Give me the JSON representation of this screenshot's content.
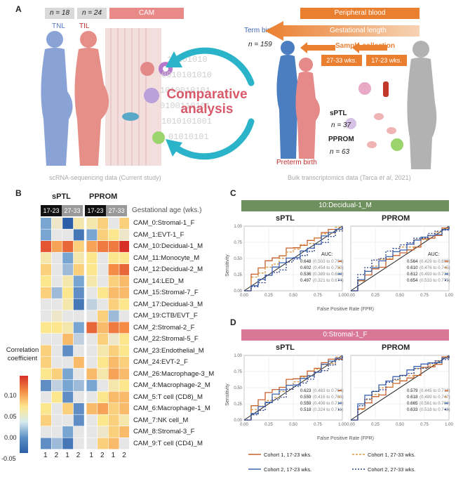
{
  "panelA": {
    "label": "A",
    "n_tnl": "n = 18",
    "n_til": "n = 24",
    "cam": "CAM",
    "tnl": "TNL",
    "til": "TIL",
    "peripheral": "Peripheral blood",
    "term_birth": "Term birth",
    "n_term": "n = 159",
    "gestational_length": "Gestational length",
    "sample_collection": "Sample collection",
    "wk_27_33": "27-33 wks.",
    "wk_17_23": "17-23 wks.",
    "comparative": "Comparative",
    "analysis": "analysis",
    "sptl": "sPTL",
    "n_sptl": "n = 37",
    "pprom": "PPROM",
    "n_pprom": "n = 63",
    "preterm_birth": "Preterm birth",
    "scrna_caption": "scRNA-sequencing data (Current study)",
    "bulk_caption_a": "Bulk transcriptomics data (Tarca ",
    "bulk_caption_b": "et al",
    "bulk_caption_c": ", 2021)"
  },
  "panelB": {
    "label": "B",
    "group1": "sPTL",
    "group2": "PPROM",
    "ga_1": "17-23",
    "ga_2": "27-33",
    "ga_label": "Gestational age (wks.)",
    "legend_title_1": "Correlation",
    "legend_title_2": "coefficient",
    "legend_ticks": [
      "0.10",
      "0.05",
      "0.00",
      "-0.05"
    ],
    "cohort_labels": [
      "1",
      "2",
      "1",
      "2",
      "1",
      "2",
      "1",
      "2"
    ],
    "rows": [
      "CAM_0:Stromal-1_F",
      "CAM_1:EVT-1_F",
      "CAM_10:Decidual-1_M",
      "CAM_11:Monocyte_M",
      "CAM_12:Decidual-2_M",
      "CAM_14:LED_M",
      "CAM_15:Stromal-7_F",
      "CAM_17:Decidual-3_M",
      "CAM_19:CTB/EVT_F",
      "CAM_2:Stromal-2_F",
      "CAM_22:Stromal-5_F",
      "CAM_23:Endothelial_M",
      "CAM_24:EVT-2_F",
      "CAM_26:Macrophage-3_M",
      "CAM_4:Macrophage-2_M",
      "CAM_5:T cell (CD8)_M",
      "CAM_6:Macrophage-1_M",
      "CAM_7:NK cell_M",
      "CAM_8:Stromal-3_F",
      "CAM_9:T cell (CD4)_M"
    ],
    "values": [
      [
        -0.03,
        0.01,
        -0.06,
        0.02,
        0.02,
        0.04,
        0.0,
        0.04
      ],
      [
        -0.03,
        0.0,
        0.0,
        -0.05,
        -0.03,
        0.04,
        0.03,
        0.01
      ],
      [
        0.1,
        0.06,
        0.09,
        0.04,
        0.06,
        0.08,
        0.08,
        0.12
      ],
      [
        0.02,
        0.0,
        -0.03,
        0.02,
        0.03,
        0.0,
        0.03,
        0.03
      ],
      [
        0.04,
        0.0,
        -0.02,
        0.04,
        0.03,
        0.0,
        0.07,
        0.09
      ],
      [
        0.03,
        0.0,
        0.02,
        -0.03,
        0.02,
        0.0,
        0.04,
        0.05
      ],
      [
        0.04,
        -0.02,
        0.03,
        -0.04,
        0.0,
        0.03,
        0.05,
        0.05
      ],
      [
        0.0,
        0.0,
        0.02,
        -0.05,
        -0.01,
        0.0,
        0.04,
        0.03
      ],
      [
        0.0,
        0.01,
        0.0,
        0.0,
        0.0,
        0.04,
        -0.02,
        0.0
      ],
      [
        0.03,
        0.03,
        0.02,
        -0.03,
        0.09,
        0.05,
        0.08,
        0.07
      ],
      [
        0.0,
        0.0,
        0.05,
        -0.01,
        0.0,
        0.04,
        0.01,
        0.03
      ],
      [
        0.04,
        0.0,
        -0.04,
        0.0,
        0.0,
        0.02,
        0.04,
        0.03
      ],
      [
        0.04,
        0.0,
        0.0,
        0.05,
        0.0,
        0.03,
        0.05,
        0.04
      ],
      [
        0.03,
        0.04,
        -0.03,
        0.0,
        0.05,
        0.02,
        0.06,
        0.05
      ],
      [
        -0.04,
        -0.01,
        -0.03,
        -0.02,
        -0.03,
        0.0,
        0.02,
        0.03
      ],
      [
        0.0,
        0.03,
        -0.04,
        0.0,
        0.0,
        0.03,
        0.05,
        0.05
      ],
      [
        0.03,
        0.0,
        0.04,
        -0.04,
        0.05,
        0.06,
        0.04,
        0.05
      ],
      [
        0.04,
        0.0,
        0.0,
        -0.04,
        0.0,
        0.03,
        0.04,
        0.02
      ],
      [
        0.0,
        0.0,
        -0.03,
        0.0,
        0.0,
        0.01,
        0.04,
        0.05
      ],
      [
        -0.04,
        -0.02,
        -0.05,
        0.0,
        0.0,
        0.04,
        0.05,
        0.0
      ]
    ]
  },
  "panelC": {
    "label": "C",
    "banner": "10:Decidual-1_M",
    "left_title": "sPTL",
    "right_title": "PPROM",
    "auc_title": "AUC:",
    "left_auc": [
      "0.648",
      "0.602",
      "0.536",
      "0.497"
    ],
    "left_ci": [
      "(0.503 to 0.794)",
      "(0.454 to 0.750)",
      "(0.389 to 0.683)",
      "(0.321 to 0.674)"
    ],
    "right_auc": [
      "0.564",
      "0.610",
      "0.612",
      "0.654"
    ],
    "right_ci": [
      "(0.429 to 0.699)",
      "(0.476 to 0.745)",
      "(0.493 to 0.731)",
      "(0.533 to 0.775)"
    ],
    "ylabel": "Sensitivity",
    "xlabel": "False Positive Rate (FPR)"
  },
  "panelD": {
    "label": "D",
    "banner": "0:Stromal-1_F",
    "left_title": "sPTL",
    "right_title": "PPROM",
    "left_auc": [
      "0.623",
      "0.559",
      "0.559",
      "0.518"
    ],
    "left_ci": [
      "(0.483 to 0.764)",
      "(0.416 to 0.703)",
      "(0.408 to 0.710)",
      "(0.324 to 0.711)"
    ],
    "right_auc": [
      "0.579",
      "0.618",
      "0.665",
      "0.633"
    ],
    "right_ci": [
      "(0.445 to 0.712)",
      "(0.489 to 0.747)",
      "(0.561 to 0.768)",
      "(0.518 to 0.748)"
    ],
    "ylabel": "Sensitivity",
    "xlabel": "False Positive Rate (FPR)",
    "legend": [
      "Cohort 1, 17-23 wks.",
      "Cohort 1, 27-33 wks.",
      "Cohort 2, 17-23 wks.",
      "Cohort 2, 27-33 wks."
    ]
  },
  "roc_ticks": [
    "0.00",
    "0.25",
    "0.50",
    "0.75",
    "1.00"
  ],
  "colors": {
    "cohort1": "#c8602c",
    "cohort1_late": "#d9963f",
    "cohort2": "#3d66b2",
    "cohort2_late": "#2a3f8a",
    "banner_c": "#6e8f5e",
    "banner_d": "#d97797",
    "cam": "#e98a88",
    "peripheral": "#ea7f30"
  }
}
